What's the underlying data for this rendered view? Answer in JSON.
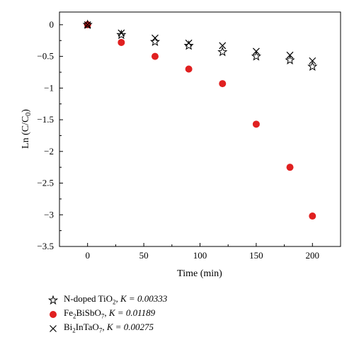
{
  "chart_data": {
    "type": "scatter",
    "title": "",
    "xlabel": "Time (min)",
    "ylabel": "Ln (C/C0)",
    "xlim": [
      -25,
      225
    ],
    "ylim": [
      -3.5,
      0.2
    ],
    "xticks": [
      0,
      50,
      100,
      150,
      200
    ],
    "yticks": [
      0,
      -0.5,
      -1,
      -1.5,
      -2,
      -2.5,
      -3,
      -3.5
    ],
    "xtick_labels": [
      "0",
      "50",
      "100",
      "150",
      "200"
    ],
    "ytick_labels": [
      "0",
      "−0.5",
      "−1",
      "−1.5",
      "−2",
      "−2.5",
      "−3",
      "−3.5"
    ],
    "grid": false,
    "legend_position": "bottom-left-outside",
    "series": [
      {
        "name": "N-doped TiO2, K = 0.00333",
        "legend_main": "N-doped TiO",
        "legend_sub": "2",
        "legend_suffix": ", K = 0.00333",
        "marker": "star",
        "color": "#000000",
        "x": [
          0,
          30,
          60,
          90,
          120,
          150,
          180,
          200
        ],
        "y": [
          0,
          -0.16,
          -0.27,
          -0.33,
          -0.43,
          -0.5,
          -0.56,
          -0.66
        ]
      },
      {
        "name": "Fe2BiSbO7, K = 0.01189",
        "legend_parts": [
          "Fe",
          "2",
          "BiSbO",
          "7"
        ],
        "legend_suffix": ", K = 0.01189",
        "marker": "circle",
        "color": "#e02020",
        "x": [
          0,
          30,
          60,
          90,
          120,
          150,
          180,
          200
        ],
        "y": [
          0,
          -0.28,
          -0.5,
          -0.7,
          -0.93,
          -1.57,
          -2.25,
          -3.02
        ]
      },
      {
        "name": "Bi2InTaO7, K = 0.00275",
        "legend_parts": [
          "Bi",
          "2",
          "InTaO",
          "7"
        ],
        "legend_suffix": ", K = 0.00275",
        "marker": "x",
        "color": "#000000",
        "x": [
          0,
          30,
          60,
          90,
          120,
          150,
          180,
          200
        ],
        "y": [
          0,
          -0.13,
          -0.21,
          -0.29,
          -0.33,
          -0.42,
          -0.48,
          -0.57
        ]
      }
    ]
  }
}
